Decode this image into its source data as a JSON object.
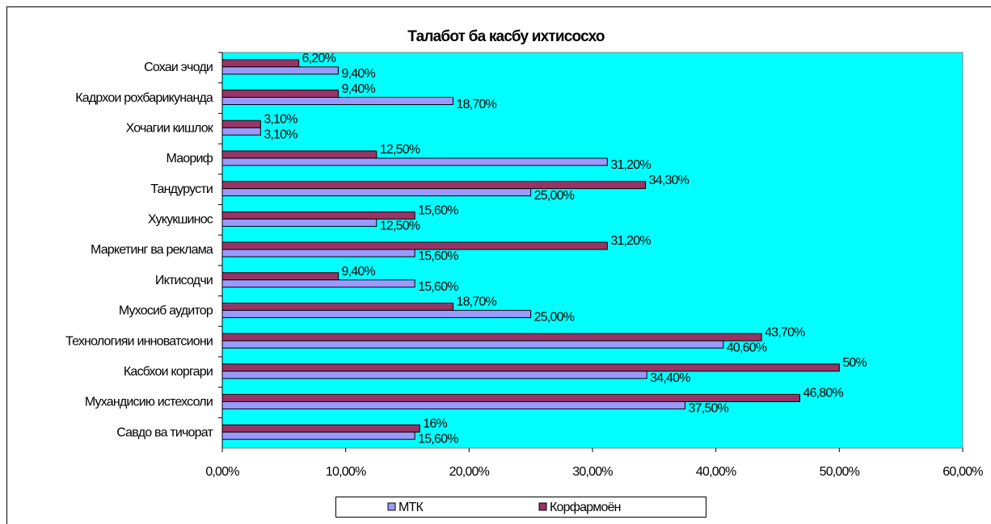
{
  "chart_data": {
    "type": "hbar",
    "title": "Талабот ба касбу ихтисосхо",
    "categories": [
      "Сохаи эчоди",
      "Кадрхои рохбарикунанда",
      "Хочагии кишлок",
      "Маориф",
      "Тандурусти",
      "Хукукшинос",
      "Маркетинг ва реклама",
      "Иктисодчи",
      "Мухосиб аудитор",
      "Технологияи инноватсиони",
      "Касбхои коргари",
      "Мухандисию истехсоли",
      "Савдо ва тичорат"
    ],
    "series": [
      {
        "name": "МТК",
        "color": "#9999ff",
        "values": [
          9.4,
          18.7,
          3.1,
          31.2,
          25,
          12.5,
          15.6,
          15.6,
          25,
          40.6,
          34.4,
          37.5,
          15.6
        ],
        "value_labels": [
          "9,40%",
          "18,70%",
          "3,10%",
          "31,20%",
          "25,00%",
          "12,50%",
          "15,60%",
          "15,60%",
          "25,00%",
          "40,60%",
          "34,40%",
          "37,50%",
          "15,60%"
        ]
      },
      {
        "name": "Корфармоён",
        "color": "#993366",
        "values": [
          6.2,
          9.4,
          3.1,
          12.5,
          34.3,
          15.6,
          31.2,
          9.4,
          18.7,
          43.7,
          50,
          46.8,
          16
        ],
        "value_labels": [
          "6,20%",
          "9,40%",
          "3,10%",
          "12,50%",
          "34,30%",
          "15,60%",
          "31,20%",
          "9,40%",
          "18,70%",
          "43,70%",
          "50%",
          "46,80%",
          "16%"
        ]
      }
    ],
    "xlim": [
      0,
      60
    ],
    "xticks": [
      {
        "value": 0,
        "label": "0,00%"
      },
      {
        "value": 10,
        "label": "10,00%"
      },
      {
        "value": 20,
        "label": "20,00%"
      },
      {
        "value": 30,
        "label": "30,00%"
      },
      {
        "value": 40,
        "label": "40,00%"
      },
      {
        "value": 50,
        "label": "50,00%"
      },
      {
        "value": 60,
        "label": "60,00%"
      }
    ],
    "grid": false,
    "legend": "bottom",
    "plot_background": "#00ffff"
  }
}
